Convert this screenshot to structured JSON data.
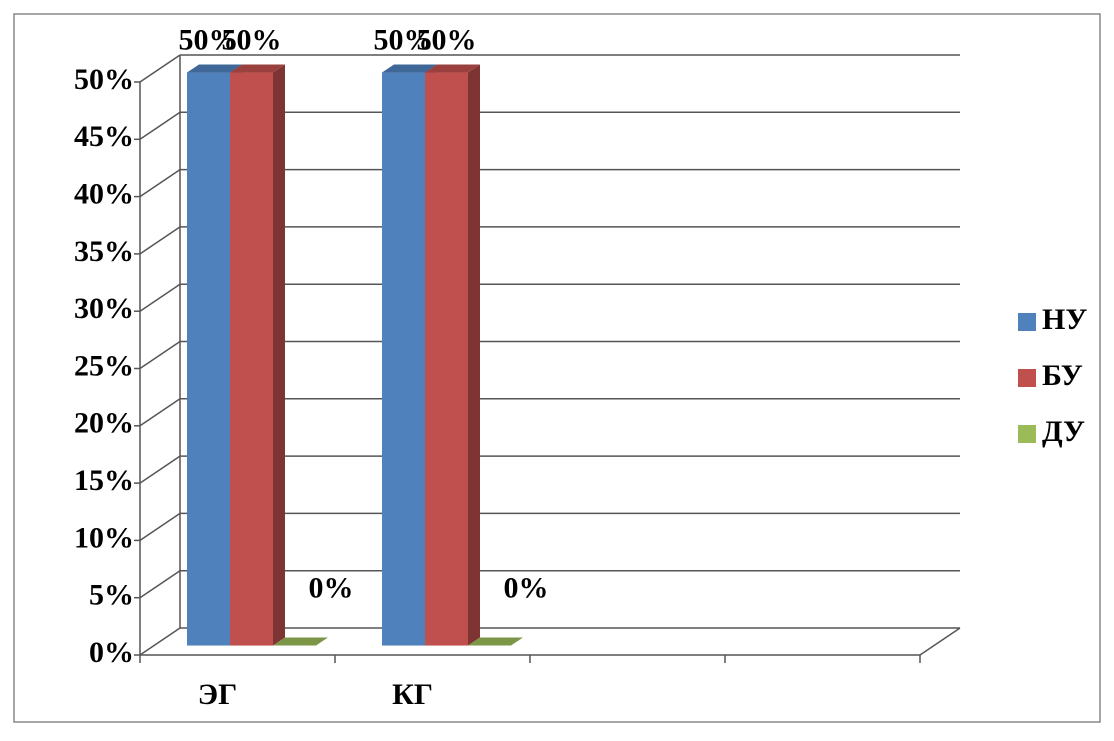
{
  "chart_data": {
    "type": "bar3d",
    "categories": [
      "ЭГ",
      "КГ",
      null,
      null
    ],
    "series": [
      {
        "name": "НУ",
        "color": "#4f81bd",
        "values": [
          50,
          50,
          null,
          null
        ],
        "value_labels": [
          "50%",
          "50%",
          null,
          null
        ]
      },
      {
        "name": "БУ",
        "color": "#c0504d",
        "values": [
          50,
          50,
          null,
          null
        ],
        "value_labels": [
          "50%",
          "50%",
          null,
          null
        ]
      },
      {
        "name": "ДУ",
        "color": "#9bbb59",
        "values": [
          0,
          0,
          null,
          null
        ],
        "value_labels": [
          "0%",
          "0%",
          null,
          null
        ]
      }
    ],
    "ylim": [
      0,
      50
    ],
    "yticks": [
      {
        "value": 0,
        "label": "0%"
      },
      {
        "value": 5,
        "label": "5%"
      },
      {
        "value": 10,
        "label": "10%"
      },
      {
        "value": 15,
        "label": "15%"
      },
      {
        "value": 20,
        "label": "20%"
      },
      {
        "value": 25,
        "label": "25%"
      },
      {
        "value": 30,
        "label": "30%"
      },
      {
        "value": 35,
        "label": "35%"
      },
      {
        "value": 40,
        "label": "40%"
      },
      {
        "value": 45,
        "label": "45%"
      },
      {
        "value": 50,
        "label": "50%"
      }
    ],
    "grid": true,
    "legend": "right"
  }
}
